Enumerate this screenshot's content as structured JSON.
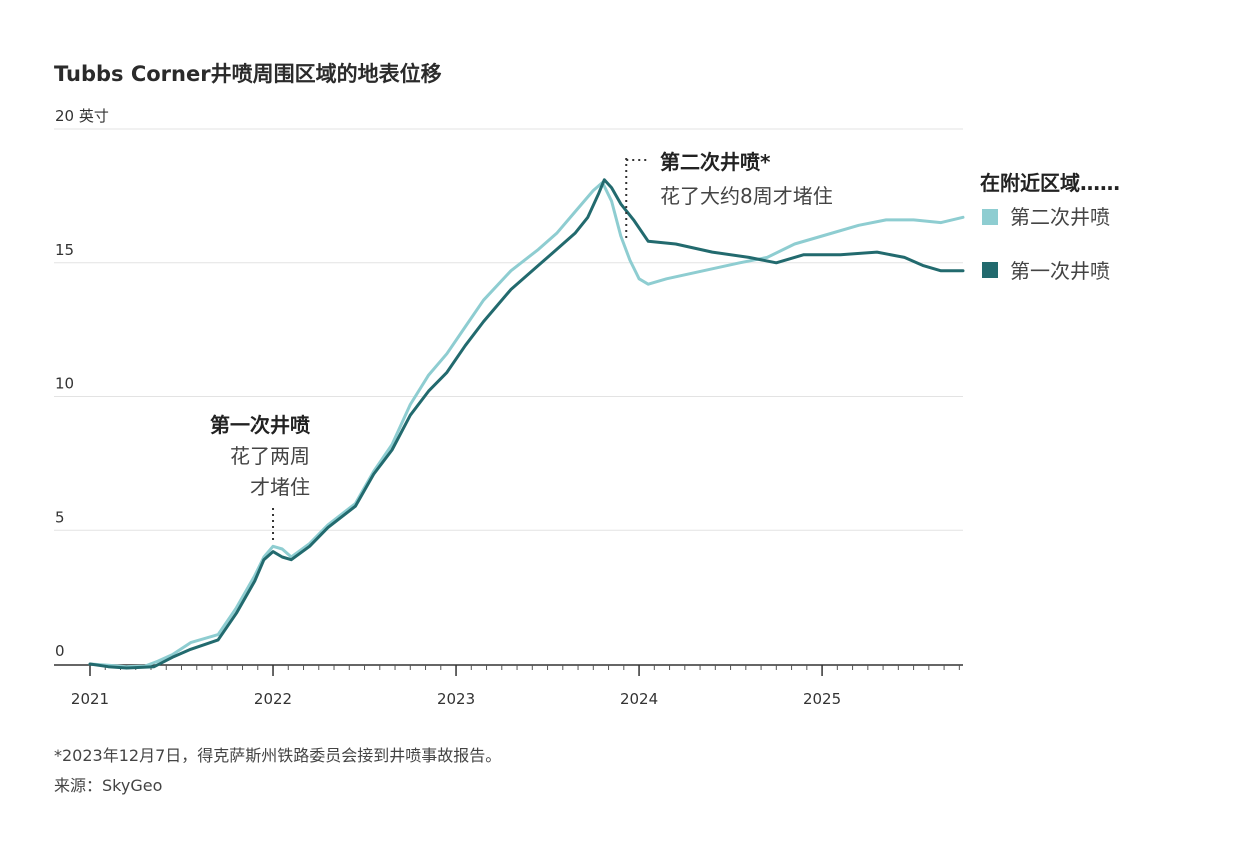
{
  "title": "Tubbs Corner井喷周围区域的地表位移",
  "footnote": "*2023年12月7日，得克萨斯州铁路委员会接到井喷事故报告。",
  "source": "来源：SkyGeo",
  "chart_data": {
    "type": "line",
    "title": "Tubbs Corner井喷周围区域的地表位移",
    "ylabel": "英寸",
    "ylim": [
      0,
      20
    ],
    "xlim": [
      2021.0,
      2025.77
    ],
    "y_ticks": [
      {
        "value": 0,
        "label": "0"
      },
      {
        "value": 5,
        "label": "5"
      },
      {
        "value": 10,
        "label": "10"
      },
      {
        "value": 15,
        "label": "15"
      },
      {
        "value": 20,
        "label": "20 英寸"
      }
    ],
    "x_ticks": [
      {
        "value": 2021,
        "label": "2021"
      },
      {
        "value": 2022,
        "label": "2022"
      },
      {
        "value": 2023,
        "label": "2023"
      },
      {
        "value": 2024,
        "label": "2024"
      },
      {
        "value": 2025,
        "label": "2025"
      }
    ],
    "legend_title": "在附近区域……",
    "series": [
      {
        "name": "第二次井喷",
        "color": "#8ecdd1",
        "points": [
          [
            2021.0,
            0
          ],
          [
            2021.1,
            -0.05
          ],
          [
            2021.2,
            -0.1
          ],
          [
            2021.3,
            -0.08
          ],
          [
            2021.37,
            0.1
          ],
          [
            2021.45,
            0.35
          ],
          [
            2021.55,
            0.8
          ],
          [
            2021.7,
            1.1
          ],
          [
            2021.8,
            2.1
          ],
          [
            2021.9,
            3.3
          ],
          [
            2021.95,
            4.0
          ],
          [
            2022.0,
            4.4
          ],
          [
            2022.05,
            4.3
          ],
          [
            2022.1,
            4.0
          ],
          [
            2022.2,
            4.5
          ],
          [
            2022.3,
            5.2
          ],
          [
            2022.45,
            6.0
          ],
          [
            2022.55,
            7.2
          ],
          [
            2022.65,
            8.2
          ],
          [
            2022.75,
            9.7
          ],
          [
            2022.85,
            10.8
          ],
          [
            2022.95,
            11.6
          ],
          [
            2023.05,
            12.6
          ],
          [
            2023.15,
            13.6
          ],
          [
            2023.3,
            14.7
          ],
          [
            2023.45,
            15.5
          ],
          [
            2023.55,
            16.1
          ],
          [
            2023.65,
            16.9
          ],
          [
            2023.75,
            17.7
          ],
          [
            2023.8,
            18.0
          ],
          [
            2023.85,
            17.3
          ],
          [
            2023.9,
            16.0
          ],
          [
            2023.95,
            15.1
          ],
          [
            2024.0,
            14.4
          ],
          [
            2024.05,
            14.2
          ],
          [
            2024.15,
            14.4
          ],
          [
            2024.35,
            14.7
          ],
          [
            2024.55,
            15.0
          ],
          [
            2024.7,
            15.2
          ],
          [
            2024.85,
            15.7
          ],
          [
            2025.0,
            16.0
          ],
          [
            2025.2,
            16.4
          ],
          [
            2025.35,
            16.6
          ],
          [
            2025.5,
            16.6
          ],
          [
            2025.65,
            16.5
          ],
          [
            2025.77,
            16.7
          ]
        ]
      },
      {
        "name": "第一次井喷",
        "color": "#226a6e",
        "points": [
          [
            2021.0,
            0
          ],
          [
            2021.1,
            -0.1
          ],
          [
            2021.2,
            -0.15
          ],
          [
            2021.35,
            -0.1
          ],
          [
            2021.45,
            0.25
          ],
          [
            2021.55,
            0.55
          ],
          [
            2021.7,
            0.9
          ],
          [
            2021.8,
            1.9
          ],
          [
            2021.9,
            3.1
          ],
          [
            2021.95,
            3.9
          ],
          [
            2022.0,
            4.2
          ],
          [
            2022.05,
            4.0
          ],
          [
            2022.1,
            3.9
          ],
          [
            2022.2,
            4.4
          ],
          [
            2022.3,
            5.1
          ],
          [
            2022.45,
            5.9
          ],
          [
            2022.55,
            7.1
          ],
          [
            2022.65,
            8.0
          ],
          [
            2022.75,
            9.3
          ],
          [
            2022.85,
            10.2
          ],
          [
            2022.95,
            10.9
          ],
          [
            2023.05,
            11.9
          ],
          [
            2023.15,
            12.8
          ],
          [
            2023.3,
            14.0
          ],
          [
            2023.45,
            14.9
          ],
          [
            2023.55,
            15.5
          ],
          [
            2023.65,
            16.1
          ],
          [
            2023.72,
            16.7
          ],
          [
            2023.78,
            17.6
          ],
          [
            2023.81,
            18.1
          ],
          [
            2023.85,
            17.8
          ],
          [
            2023.9,
            17.2
          ],
          [
            2023.97,
            16.6
          ],
          [
            2024.05,
            15.8
          ],
          [
            2024.2,
            15.7
          ],
          [
            2024.4,
            15.4
          ],
          [
            2024.6,
            15.2
          ],
          [
            2024.75,
            15.0
          ],
          [
            2024.9,
            15.3
          ],
          [
            2025.1,
            15.3
          ],
          [
            2025.3,
            15.4
          ],
          [
            2025.45,
            15.2
          ],
          [
            2025.55,
            14.9
          ],
          [
            2025.65,
            14.7
          ],
          [
            2025.77,
            14.7
          ]
        ]
      }
    ],
    "annotations": [
      {
        "title": "第一次井喷",
        "lines": [
          "花了两周",
          "才堵住"
        ],
        "x": 2022.0
      },
      {
        "title": "第二次井喷*",
        "lines": [
          "花了大约8周才堵住"
        ],
        "x": 2023.93
      }
    ]
  }
}
